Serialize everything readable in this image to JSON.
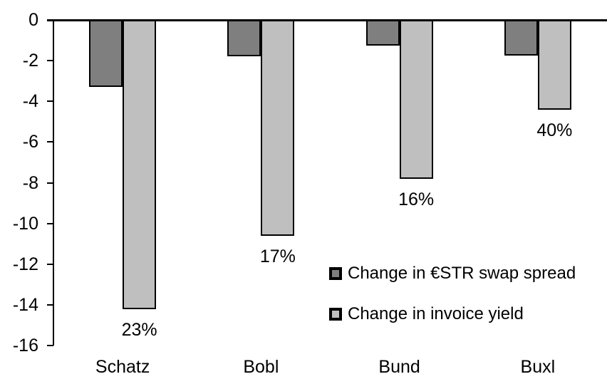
{
  "chart_data": {
    "type": "bar",
    "title": "",
    "xlabel": "",
    "ylabel": "",
    "categories": [
      "Schatz",
      "Bobl",
      "Bund",
      "Buxl"
    ],
    "series": [
      {
        "id": "estr-swap-spread",
        "name": "Change in €STR swap spread",
        "color": "#7F7F7F",
        "values": [
          -3.3,
          -1.8,
          -1.25,
          -1.75
        ]
      },
      {
        "id": "invoice-yield",
        "name": "Change in invoice yield",
        "color": "#BFBFBF",
        "values": [
          -14.2,
          -10.6,
          -7.8,
          -4.4
        ],
        "bar_labels": [
          "23%",
          "17%",
          "16%",
          "40%"
        ]
      }
    ],
    "yticks": [
      0,
      -2,
      -4,
      -6,
      -8,
      -10,
      -12,
      -14,
      -16
    ],
    "ylim": [
      -16,
      0
    ],
    "grid": false,
    "legend_position": "inside-right",
    "axis_color": "#000000",
    "bar_outline_color": "#000000",
    "background": "#FFFFFF"
  }
}
